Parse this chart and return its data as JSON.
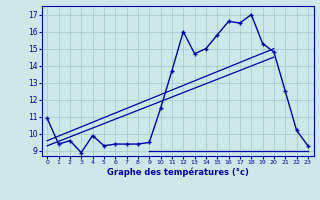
{
  "xlabel": "Graphe des températures (°c)",
  "background_color": "#cce8e8",
  "line_color": "#0000aa",
  "grid_color": "#aacccc",
  "xlim": [
    -0.5,
    23.5
  ],
  "ylim": [
    8.7,
    17.5
  ],
  "yticks": [
    9,
    10,
    11,
    12,
    13,
    14,
    15,
    16,
    17
  ],
  "xticks": [
    0,
    1,
    2,
    3,
    4,
    5,
    6,
    7,
    8,
    9,
    10,
    11,
    12,
    13,
    14,
    15,
    16,
    17,
    18,
    19,
    20,
    21,
    22,
    23
  ],
  "temp_line": {
    "x": [
      0,
      1,
      2,
      3,
      4,
      5,
      6,
      7,
      8,
      9,
      10,
      11,
      12,
      13,
      14,
      15,
      16,
      17,
      18,
      19,
      20,
      21,
      22,
      23
    ],
    "y": [
      10.9,
      9.4,
      9.6,
      8.9,
      9.9,
      9.3,
      9.4,
      9.4,
      9.4,
      9.5,
      11.5,
      13.7,
      16.0,
      14.7,
      15.0,
      15.8,
      16.6,
      16.5,
      17.0,
      15.3,
      14.8,
      12.5,
      10.2,
      9.3
    ]
  },
  "trend_line1": {
    "x": [
      0,
      20
    ],
    "y": [
      9.6,
      15.0
    ]
  },
  "trend_line2": {
    "x": [
      0,
      20
    ],
    "y": [
      9.3,
      14.5
    ]
  },
  "flat_line": {
    "x": [
      9,
      23
    ],
    "y": [
      9.0,
      9.0
    ]
  }
}
